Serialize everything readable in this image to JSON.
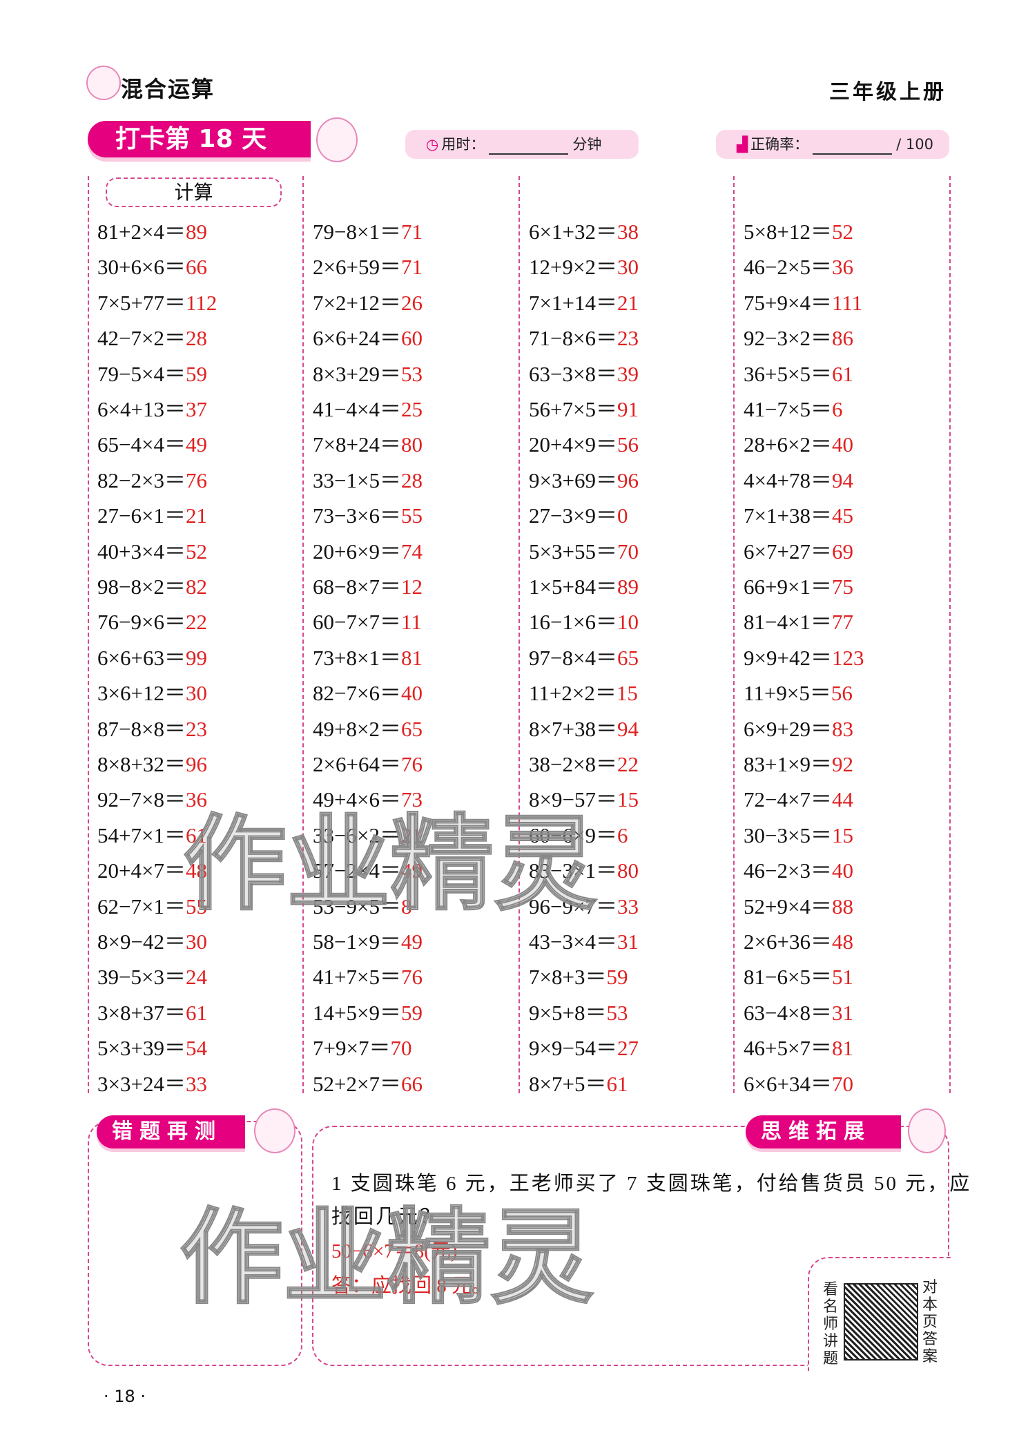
{
  "header": {
    "title": "混合运算",
    "grade": "三年级上册"
  },
  "badge": {
    "label": "打卡第 18 天"
  },
  "time": {
    "label": "用时：",
    "unit": "分钟",
    "icon": "clock-icon"
  },
  "accuracy": {
    "label": "正确率：",
    "total": "/ 100",
    "icon": "bar-chart-icon"
  },
  "calc": {
    "label": "计算"
  },
  "columns": [
    [
      [
        "81+2×4＝",
        "89"
      ],
      [
        "30+6×6＝",
        "66"
      ],
      [
        "7×5+77＝",
        "112"
      ],
      [
        "42−7×2＝",
        "28"
      ],
      [
        "79−5×4＝",
        "59"
      ],
      [
        "6×4+13＝",
        "37"
      ],
      [
        "65−4×4＝",
        "49"
      ],
      [
        "82−2×3＝",
        "76"
      ],
      [
        "27−6×1＝",
        "21"
      ],
      [
        "40+3×4＝",
        "52"
      ],
      [
        "98−8×2＝",
        "82"
      ],
      [
        "76−9×6＝",
        "22"
      ],
      [
        "6×6+63＝",
        "99"
      ],
      [
        "3×6+12＝",
        "30"
      ],
      [
        "87−8×8＝",
        "23"
      ],
      [
        "8×8+32＝",
        "96"
      ],
      [
        "92−7×8＝",
        "36"
      ],
      [
        "54+7×1＝",
        "61"
      ],
      [
        "20+4×7＝",
        "48"
      ],
      [
        "62−7×1＝",
        "55"
      ],
      [
        "8×9−42＝",
        "30"
      ],
      [
        "39−5×3＝",
        "24"
      ],
      [
        "3×8+37＝",
        "61"
      ],
      [
        "5×3+39＝",
        "54"
      ],
      [
        "3×3+24＝",
        "33"
      ]
    ],
    [
      [
        "79−8×1＝",
        "71"
      ],
      [
        "2×6+59＝",
        "71"
      ],
      [
        "7×2+12＝",
        "26"
      ],
      [
        "6×6+24＝",
        "60"
      ],
      [
        "8×3+29＝",
        "53"
      ],
      [
        "41−4×4＝",
        "25"
      ],
      [
        "7×8+24＝",
        "80"
      ],
      [
        "33−1×5＝",
        "28"
      ],
      [
        "73−3×6＝",
        "55"
      ],
      [
        "20+6×9＝",
        "74"
      ],
      [
        "68−8×7＝",
        "12"
      ],
      [
        "60−7×7＝",
        "11"
      ],
      [
        "73+8×1＝",
        "81"
      ],
      [
        "82−7×6＝",
        "40"
      ],
      [
        "49+8×2＝",
        "65"
      ],
      [
        "2×6+64＝",
        "76"
      ],
      [
        "49+4×6＝",
        "73"
      ],
      [
        "33−6×2＝",
        "21"
      ],
      [
        "57−2×4＝",
        "49"
      ],
      [
        "53−9×5＝",
        "8"
      ],
      [
        "58−1×9＝",
        "49"
      ],
      [
        "41+7×5＝",
        "76"
      ],
      [
        "14+5×9＝",
        "59"
      ],
      [
        "7+9×7＝",
        "70"
      ],
      [
        "52+2×7＝",
        "66"
      ]
    ],
    [
      [
        "6×1+32＝",
        "38"
      ],
      [
        "12+9×2＝",
        "30"
      ],
      [
        "7×1+14＝",
        "21"
      ],
      [
        "71−8×6＝",
        "23"
      ],
      [
        "63−3×8＝",
        "39"
      ],
      [
        "56+7×5＝",
        "91"
      ],
      [
        "20+4×9＝",
        "56"
      ],
      [
        "9×3+69＝",
        "96"
      ],
      [
        "27−3×9＝",
        "0"
      ],
      [
        "5×3+55＝",
        "70"
      ],
      [
        "1×5+84＝",
        "89"
      ],
      [
        "16−1×6＝",
        "10"
      ],
      [
        "97−8×4＝",
        "65"
      ],
      [
        "11+2×2＝",
        "15"
      ],
      [
        "8×7+38＝",
        "94"
      ],
      [
        "38−2×8＝",
        "22"
      ],
      [
        "8×9−57＝",
        "15"
      ],
      [
        "60−6×9＝",
        "6"
      ],
      [
        "83−3×1＝",
        "80"
      ],
      [
        "96−9×7＝",
        "33"
      ],
      [
        "43−3×4＝",
        "31"
      ],
      [
        "7×8+3＝",
        "59"
      ],
      [
        "9×5+8＝",
        "53"
      ],
      [
        "9×9−54＝",
        "27"
      ],
      [
        "8×7+5＝",
        "61"
      ]
    ],
    [
      [
        "5×8+12＝",
        "52"
      ],
      [
        "46−2×5＝",
        "36"
      ],
      [
        "75+9×4＝",
        "111"
      ],
      [
        "92−3×2＝",
        "86"
      ],
      [
        "36+5×5＝",
        "61"
      ],
      [
        "41−7×5＝",
        "6"
      ],
      [
        "28+6×2＝",
        "40"
      ],
      [
        "4×4+78＝",
        "94"
      ],
      [
        "7×1+38＝",
        "45"
      ],
      [
        "6×7+27＝",
        "69"
      ],
      [
        "66+9×1＝",
        "75"
      ],
      [
        "81−4×1＝",
        "77"
      ],
      [
        "9×9+42＝",
        "123"
      ],
      [
        "11+9×5＝",
        "56"
      ],
      [
        "6×9+29＝",
        "83"
      ],
      [
        "83+1×9＝",
        "92"
      ],
      [
        "72−4×7＝",
        "44"
      ],
      [
        "30−3×5＝",
        "15"
      ],
      [
        "46−2×3＝",
        "40"
      ],
      [
        "52+9×4＝",
        "88"
      ],
      [
        "2×6+36＝",
        "48"
      ],
      [
        "81−6×5＝",
        "51"
      ],
      [
        "63−4×8＝",
        "31"
      ],
      [
        "46+5×7＝",
        "81"
      ],
      [
        "6×6+34＝",
        "70"
      ]
    ]
  ],
  "review": {
    "label": "错题再测"
  },
  "extension": {
    "label": "思维拓展",
    "problem_line1": "1 支圆珠笔 6 元，王老师买了 7 支圆珠笔，付给售货员 50 元，应",
    "problem_line2": "找回几元？",
    "solution": "50−6×7＝8(元)",
    "answer": "答：应找回 8 元。"
  },
  "qr": {
    "left_text": "看名师讲题",
    "right_text": "对本页答案"
  },
  "watermark": "作业精灵",
  "page_number": "· 18 ·",
  "colors": {
    "accent": "#e4007f",
    "answer": "#e02020",
    "pill": "#fbd9ea"
  }
}
